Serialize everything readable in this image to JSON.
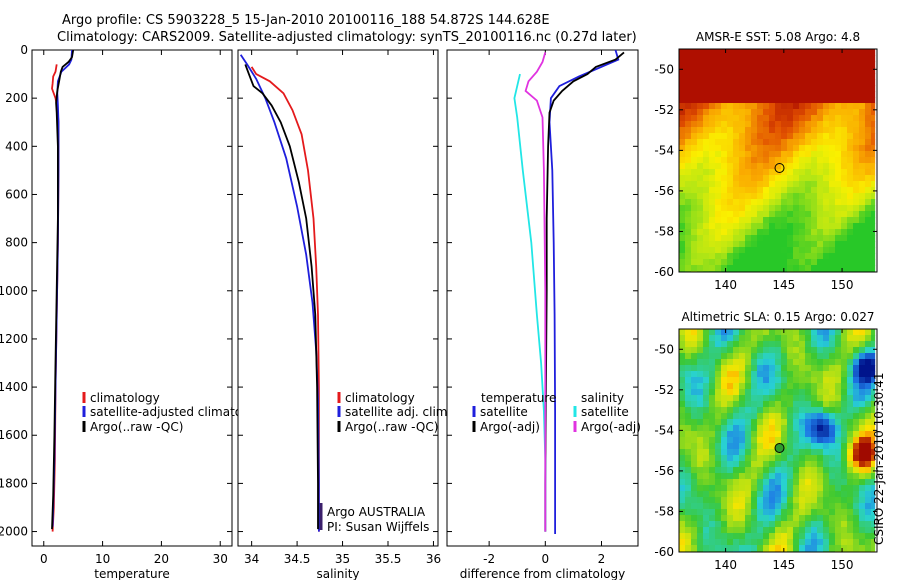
{
  "header": {
    "line1": "Argo profile: CS 5903228_5 15-Jan-2010 20100116_188 54.872S 144.628E",
    "line2": "Climatology: CARS2009. Satellite-adjusted climatology: synTS_20100116.nc (0.27d later)"
  },
  "credit": "CSIRO 22-Jan-2010 10:30:41",
  "colors": {
    "climatology": "#e41a1c",
    "satellite": "#1f1fdc",
    "argo": "#000000",
    "sat_salinity": "#22e6e6",
    "argo_salinity": "#e033e0"
  },
  "chart_data": [
    {
      "type": "line",
      "name": "temperature-panel",
      "xlabel": "temperature",
      "ylabel": "",
      "xlim": [
        -2,
        32
      ],
      "ylim": [
        2060,
        0
      ],
      "xticks": [
        "0",
        "10",
        "20",
        "30"
      ],
      "yticks": [
        "0",
        "200",
        "400",
        "600",
        "800",
        "1000",
        "1200",
        "1400",
        "1600",
        "1800",
        "2000"
      ],
      "xtick_values": [
        0,
        10,
        20,
        30
      ],
      "ytick_values": [
        0,
        200,
        400,
        600,
        800,
        1000,
        1200,
        1400,
        1600,
        1800,
        2000
      ],
      "legend": [
        "climatology",
        "satellite-adjusted climatology",
        "Argo(..raw -QC)"
      ],
      "series": [
        {
          "name": "climatology",
          "color_key": "climatology",
          "x": [
            2.2,
            2.0,
            1.6,
            1.5,
            1.4,
            2.0,
            2.3,
            2.5,
            2.5,
            2.4,
            2.2,
            2.0,
            1.9,
            1.7,
            1.5
          ],
          "y": [
            60,
            90,
            110,
            140,
            160,
            200,
            240,
            300,
            500,
            800,
            1100,
            1400,
            1700,
            1900,
            2000
          ]
        },
        {
          "name": "satellite-adjusted climatology",
          "color_key": "satellite",
          "x": [
            4.8,
            4.7,
            4.3,
            3.0,
            2.4,
            2.3,
            2.4,
            2.5,
            2.5,
            2.4,
            2.2,
            2.0,
            1.8,
            1.6,
            1.5
          ],
          "y": [
            0,
            40,
            60,
            90,
            130,
            180,
            230,
            300,
            500,
            800,
            1100,
            1400,
            1700,
            1900,
            1980
          ]
        },
        {
          "name": "Argo(..raw -QC)",
          "color_key": "argo",
          "x": [
            5.0,
            4.8,
            4.2,
            3.2,
            2.9,
            2.6,
            2.3,
            2.1,
            2.2,
            2.4,
            2.4,
            2.2,
            2.0,
            1.8,
            1.6,
            1.4
          ],
          "y": [
            0,
            30,
            50,
            70,
            90,
            130,
            170,
            220,
            260,
            400,
            700,
            1000,
            1300,
            1600,
            1850,
            1990
          ]
        }
      ]
    },
    {
      "type": "line",
      "name": "salinity-panel",
      "xlabel": "salinity",
      "xlim": [
        33.85,
        36.05
      ],
      "ylim": [
        2060,
        0
      ],
      "xticks": [
        "34",
        "34.5",
        "35",
        "35.5",
        "36"
      ],
      "xtick_values": [
        34,
        34.5,
        35,
        35.5,
        36
      ],
      "legend": [
        "climatology",
        "satellite adj. clim.",
        "Argo(..raw -QC)"
      ],
      "annotation": [
        "Argo AUSTRALIA",
        "PI: Susan Wijffels"
      ],
      "series": [
        {
          "name": "climatology",
          "color_key": "climatology",
          "x": [
            34.0,
            34.05,
            34.2,
            34.35,
            34.45,
            34.55,
            34.62,
            34.68,
            34.71,
            34.73,
            34.74,
            34.74,
            34.74
          ],
          "y": [
            70,
            100,
            130,
            180,
            250,
            350,
            500,
            700,
            900,
            1100,
            1400,
            1800,
            2000
          ]
        },
        {
          "name": "satellite adj. clim.",
          "color_key": "satellite",
          "x": [
            33.88,
            33.95,
            34.05,
            34.15,
            34.25,
            34.38,
            34.5,
            34.6,
            34.67,
            34.71,
            34.73,
            34.74,
            34.74
          ],
          "y": [
            20,
            60,
            120,
            200,
            300,
            450,
            650,
            850,
            1050,
            1250,
            1450,
            1800,
            2000
          ]
        },
        {
          "name": "Argo(..raw -QC)",
          "color_key": "argo",
          "x": [
            33.93,
            33.97,
            34.02,
            34.12,
            34.22,
            34.32,
            34.42,
            34.52,
            34.6,
            34.66,
            34.7,
            34.72,
            34.73,
            34.73
          ],
          "y": [
            60,
            100,
            150,
            180,
            230,
            300,
            400,
            550,
            700,
            900,
            1100,
            1400,
            1800,
            1990
          ]
        }
      ]
    },
    {
      "type": "line",
      "name": "difference-panel",
      "xlabel": "difference from climatology",
      "xlim": [
        -3.5,
        3.3
      ],
      "ylim": [
        2060,
        0
      ],
      "xticks": [
        "-2",
        "0",
        "2"
      ],
      "xtick_values": [
        -2,
        0,
        2
      ],
      "legend_left_title": "temperature",
      "legend_right_title": "salinity",
      "legend_left": [
        "satellite",
        "Argo(-adj)"
      ],
      "legend_right": [
        "satellite",
        "Argo(-adj)"
      ],
      "series": [
        {
          "name": "temperature satellite",
          "color_key": "satellite",
          "x": [
            2.5,
            2.6,
            2.2,
            1.2,
            0.5,
            0.2,
            0.15,
            0.25,
            0.3,
            0.33,
            0.35,
            0.35,
            0.35
          ],
          "y": [
            0,
            40,
            60,
            110,
            150,
            200,
            300,
            500,
            800,
            1100,
            1500,
            1800,
            2010
          ]
        },
        {
          "name": "temperature Argo(-adj)",
          "color_key": "argo",
          "x": [
            2.8,
            2.5,
            1.8,
            1.5,
            1.0,
            0.6,
            0.3,
            0.15,
            0.1,
            0.05,
            0.05,
            0.02,
            0.0,
            0.0
          ],
          "y": [
            10,
            40,
            70,
            100,
            130,
            170,
            210,
            260,
            400,
            700,
            1000,
            1400,
            1800,
            2000
          ]
        },
        {
          "name": "salinity satellite",
          "color_key": "sat_salinity",
          "x": [
            -0.9,
            -1.1,
            -1.0,
            -0.8,
            -0.5,
            -0.3,
            -0.15,
            -0.05,
            0.0,
            0.0,
            0.0
          ],
          "y": [
            100,
            200,
            280,
            500,
            800,
            1100,
            1300,
            1500,
            1700,
            1900,
            2000
          ]
        },
        {
          "name": "salinity Argo(-adj)",
          "color_key": "argo_salinity",
          "x": [
            0.0,
            -0.1,
            -0.3,
            -0.6,
            -0.7,
            -0.3,
            -0.1,
            -0.05,
            0.0,
            0.0,
            0.0
          ],
          "y": [
            10,
            50,
            90,
            130,
            170,
            210,
            280,
            500,
            1000,
            1500,
            2000
          ]
        }
      ]
    },
    {
      "type": "heatmap",
      "name": "sst-map",
      "title": "AMSR-E SST: 5.08 Argo: 4.8",
      "xlim": [
        136,
        153
      ],
      "ylim": [
        -60,
        -49
      ],
      "xticks": [
        "140",
        "145",
        "150"
      ],
      "yticks": [
        "-50",
        "-52",
        "-54",
        "-56",
        "-58",
        "-60"
      ],
      "xtick_values": [
        140,
        145,
        150
      ],
      "ytick_values": [
        -50,
        -52,
        -54,
        -56,
        -58,
        -60
      ],
      "marker": {
        "lon": 144.63,
        "lat": -54.87
      }
    },
    {
      "type": "heatmap",
      "name": "sla-map",
      "title": "Altimetric SLA: 0.15 Argo: 0.027",
      "xlim": [
        136,
        153
      ],
      "ylim": [
        -60,
        -49
      ],
      "xticks": [
        "140",
        "145",
        "150"
      ],
      "yticks": [
        "-50",
        "-52",
        "-54",
        "-56",
        "-58",
        "-60"
      ],
      "xtick_values": [
        140,
        145,
        150
      ],
      "ytick_values": [
        -50,
        -52,
        -54,
        -56,
        -58,
        -60
      ],
      "marker": {
        "lon": 144.63,
        "lat": -54.87
      }
    }
  ]
}
